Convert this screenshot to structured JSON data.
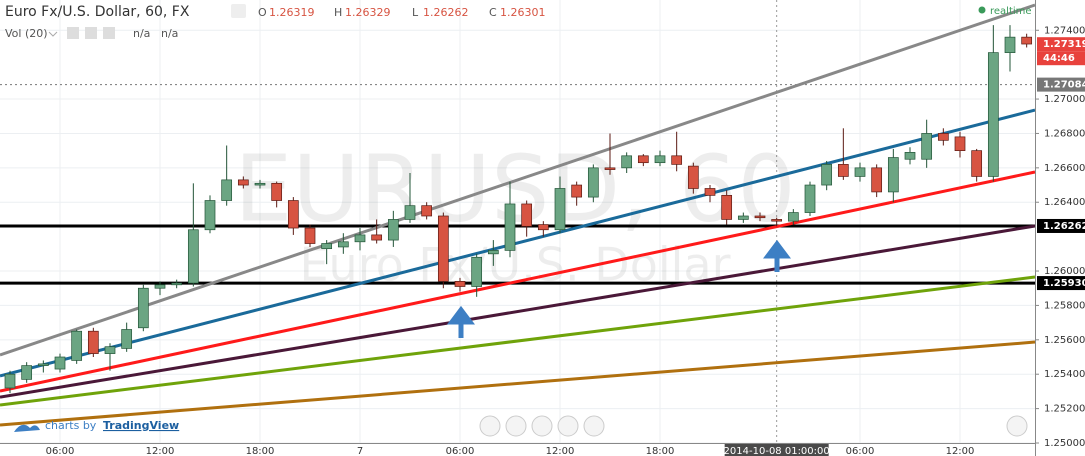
{
  "header": {
    "symbol_title": "Euro Fx/U.S. Dollar, 60, FX",
    "ohlc": [
      {
        "key": "O",
        "value": 1.26319
      },
      {
        "key": "H",
        "value": 1.26329
      },
      {
        "key": "L",
        "value": 1.26262
      },
      {
        "key": "C",
        "value": 1.26301
      }
    ],
    "indicator": "Vol (20)",
    "indicator_values": [
      "n/a",
      "n/a"
    ],
    "status": "realtime"
  },
  "watermark": {
    "symbol": "EURUSD, 60",
    "description": "Euro Fx/U.S. Dollar"
  },
  "branding": {
    "prefix": "charts by",
    "name": "TradingView"
  },
  "chart_data": {
    "type": "candlestick",
    "categories": [
      null,
      null,
      null,
      "06:00",
      null,
      null,
      null,
      null,
      null,
      "12:00",
      null,
      null,
      null,
      null,
      null,
      "18:00",
      null,
      null,
      null,
      null,
      null,
      "7",
      null,
      null,
      null,
      null,
      null,
      "06:00",
      null,
      null,
      null,
      null,
      null,
      "12:00",
      null,
      null,
      null,
      null,
      null,
      "18:00",
      null,
      null,
      null,
      null,
      null,
      null,
      null,
      null,
      null,
      null,
      null,
      "06:00",
      null,
      null,
      null,
      null,
      null,
      "12:00",
      null,
      null,
      null,
      null
    ],
    "open": [
      1.2532,
      1.2537,
      1.2545,
      1.2543,
      1.2548,
      1.2565,
      1.2552,
      1.2555,
      1.2567,
      1.259,
      1.2592,
      1.2593,
      1.2624,
      1.2641,
      1.2653,
      1.265,
      1.2651,
      1.2641,
      1.2625,
      1.2613,
      1.2614,
      1.2617,
      1.2621,
      1.2618,
      1.263,
      1.2638,
      1.2632,
      1.2594,
      1.2591,
      1.261,
      1.2612,
      1.2639,
      1.2627,
      1.2624,
      1.265,
      1.2643,
      1.266,
      1.266,
      1.2667,
      1.2663,
      1.2667,
      1.2661,
      1.2648,
      1.2644,
      1.263,
      1.2632,
      1.263,
      1.2629,
      1.2634,
      1.265,
      1.2662,
      1.2655,
      1.266,
      1.2646,
      1.2665,
      1.2665,
      1.268,
      1.2678,
      1.267,
      1.2655,
      1.2727,
      1.2736
    ],
    "high": [
      1.2542,
      1.2547,
      1.2548,
      1.2552,
      1.2566,
      1.2567,
      1.2558,
      1.257,
      1.2592,
      1.2594,
      1.2595,
      1.2651,
      1.2644,
      1.2673,
      1.2655,
      1.2653,
      1.2652,
      1.2643,
      1.2627,
      1.2618,
      1.2622,
      1.2625,
      1.263,
      1.2635,
      1.2657,
      1.264,
      1.2634,
      1.2596,
      1.261,
      1.2618,
      1.2652,
      1.2641,
      1.2629,
      1.2655,
      1.2652,
      1.2662,
      1.268,
      1.2669,
      1.2668,
      1.267,
      1.2681,
      1.2663,
      1.265,
      1.2647,
      1.2634,
      1.2634,
      1.2631,
      1.2636,
      1.2652,
      1.2664,
      1.2683,
      1.2663,
      1.2662,
      1.2671,
      1.2672,
      1.2688,
      1.2683,
      1.2681,
      1.2671,
      1.2743,
      1.2743,
      1.2738
    ],
    "low": [
      1.2529,
      1.2535,
      1.2541,
      1.2541,
      1.2546,
      1.255,
      1.2542,
      1.2553,
      1.2565,
      1.2586,
      1.259,
      1.2591,
      1.2622,
      1.2638,
      1.2648,
      1.2648,
      1.2637,
      1.2621,
      1.2614,
      1.2604,
      1.261,
      1.2612,
      1.2616,
      1.2614,
      1.2628,
      1.263,
      1.259,
      1.2588,
      1.2585,
      1.2603,
      1.2608,
      1.262,
      1.262,
      1.2622,
      1.2638,
      1.264,
      1.2656,
      1.2657,
      1.2661,
      1.2661,
      1.2658,
      1.2645,
      1.264,
      1.2627,
      1.2628,
      1.2629,
      1.2626,
      1.2627,
      1.2632,
      1.2647,
      1.2653,
      1.2652,
      1.2643,
      1.264,
      1.2662,
      1.266,
      1.2673,
      1.2666,
      1.2652,
      1.2652,
      1.2716,
      1.273
    ],
    "close": [
      1.254,
      1.2545,
      1.2546,
      1.255,
      1.2565,
      1.2552,
      1.2556,
      1.2566,
      1.259,
      1.2592,
      1.2593,
      1.2624,
      1.2641,
      1.2653,
      1.265,
      1.2651,
      1.2641,
      1.2625,
      1.2616,
      1.2616,
      1.2617,
      1.2621,
      1.2618,
      1.263,
      1.2638,
      1.2632,
      1.2594,
      1.2591,
      1.2608,
      1.2612,
      1.2639,
      1.2626,
      1.2624,
      1.2648,
      1.2643,
      1.266,
      1.2659,
      1.2667,
      1.2663,
      1.2667,
      1.2662,
      1.2648,
      1.2644,
      1.263,
      1.2632,
      1.2631,
      1.2629,
      1.2634,
      1.265,
      1.2662,
      1.2655,
      1.266,
      1.2646,
      1.2666,
      1.2669,
      1.268,
      1.2676,
      1.267,
      1.2655,
      1.2727,
      1.2736,
      1.2732
    ],
    "up_color": "#6ba583",
    "down_color": "#d75442",
    "xlim": [
      -0.6,
      61.5
    ],
    "ylim": [
      1.25,
      1.27576
    ],
    "yticks": [
      {
        "value": 1.25,
        "label": "1.25000"
      },
      {
        "value": 1.252,
        "label": "1.25200"
      },
      {
        "value": 1.254,
        "label": "1.25400"
      },
      {
        "value": 1.256,
        "label": "1.25600"
      },
      {
        "value": 1.258,
        "label": "1.25800"
      },
      {
        "value": 1.26,
        "label": "1.26000"
      },
      {
        "value": 1.264,
        "label": "1.26400"
      },
      {
        "value": 1.266,
        "label": "1.26600"
      },
      {
        "value": 1.268,
        "label": "1.26800"
      },
      {
        "value": 1.27,
        "label": "1.27000"
      },
      {
        "value": 1.274,
        "label": "1.27400"
      }
    ],
    "grid": true,
    "trend_lines": [
      {
        "color": "#888888",
        "from": [
          -0.6,
          1.25512
        ],
        "to": [
          61.5,
          1.27547
        ]
      },
      {
        "color": "#1a6a9a",
        "from": [
          -0.6,
          1.2539
        ],
        "to": [
          61.5,
          1.26936
        ]
      },
      {
        "color": "#ff1a1a",
        "from": [
          -0.6,
          1.25302
        ],
        "to": [
          61.5,
          1.26576
        ]
      },
      {
        "color": "#4a1838",
        "from": [
          -0.6,
          1.25267
        ],
        "to": [
          61.5,
          1.26262
        ]
      },
      {
        "color": "#6fa30a",
        "from": [
          -0.6,
          1.25221
        ],
        "to": [
          61.5,
          1.25965
        ]
      },
      {
        "color": "#b0700f",
        "from": [
          -0.6,
          1.25105
        ],
        "to": [
          61.5,
          1.25587
        ]
      }
    ],
    "hlines": [
      {
        "value": 1.26262,
        "label": "1.26262",
        "color": "#000000",
        "style": "solid"
      },
      {
        "value": 1.2593,
        "label": "1.25930",
        "color": "#000000",
        "style": "solid"
      },
      {
        "value": 1.27084,
        "label": "1.27084",
        "color": "#777777",
        "style": "dotted"
      }
    ],
    "last_price": {
      "value": 1.27319,
      "label": "1.27319",
      "color": "#e8413c"
    },
    "countdown": "44:46",
    "crosshair": {
      "index": 46,
      "label": "2014-10-08 01:00:00"
    }
  }
}
